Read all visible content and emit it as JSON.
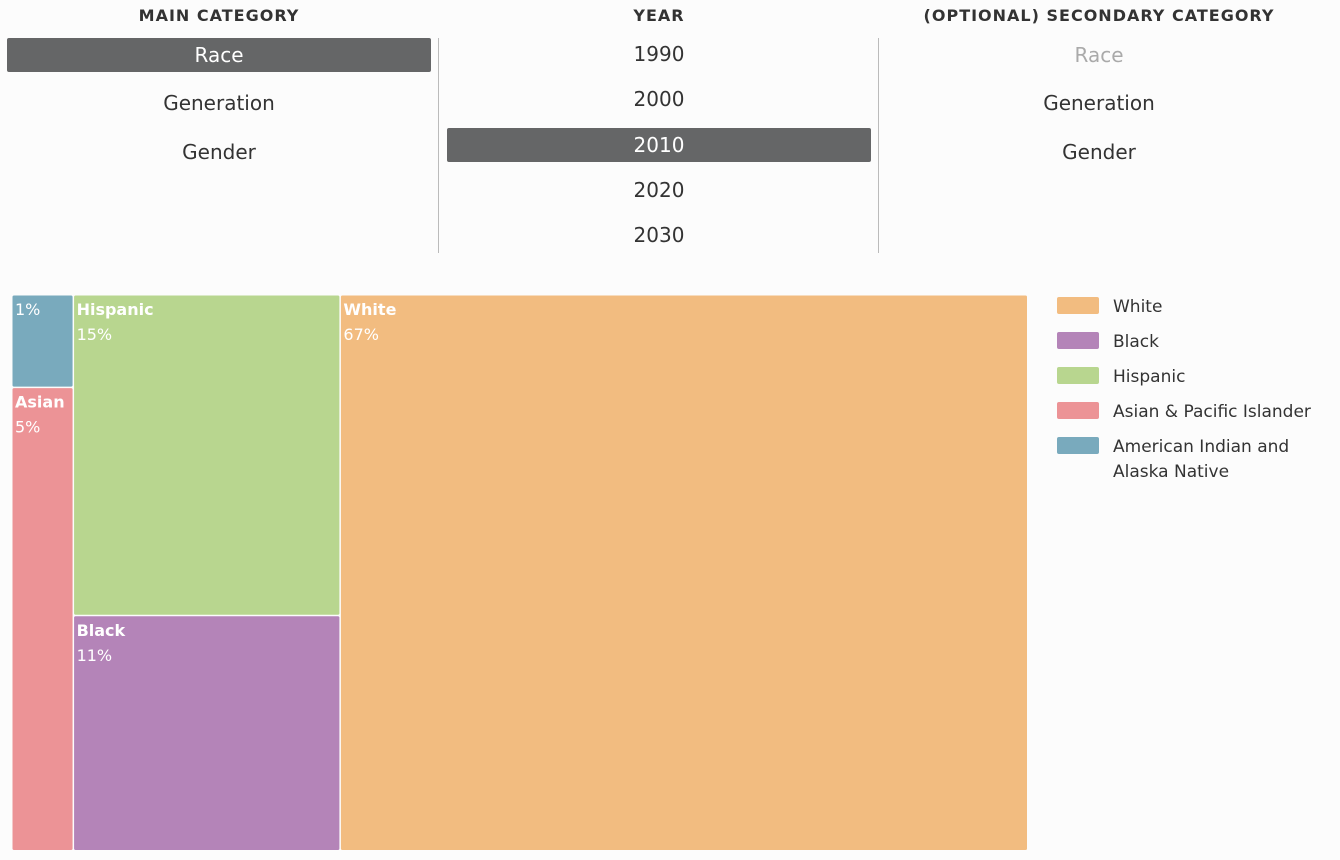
{
  "selectors": {
    "main": {
      "header": "MAIN CATEGORY",
      "options": [
        "Race",
        "Generation",
        "Gender"
      ],
      "selected": "Race"
    },
    "year": {
      "header": "YEAR",
      "options": [
        "1990",
        "2000",
        "2010",
        "2020",
        "2030"
      ],
      "selected": "2010"
    },
    "secondary": {
      "header": "(OPTIONAL) SECONDARY CATEGORY",
      "options": [
        "Race",
        "Generation",
        "Gender"
      ],
      "disabled": "Race"
    }
  },
  "chart_data": {
    "type": "treemap",
    "title": "",
    "nodes": [
      {
        "name": "White",
        "label": "White",
        "value": 67,
        "value_label": "67%",
        "color": "#f2bc80"
      },
      {
        "name": "Hispanic",
        "label": "Hispanic",
        "value": 15,
        "value_label": "15%",
        "color": "#b8d68f"
      },
      {
        "name": "Black",
        "label": "Black",
        "value": 11,
        "value_label": "11%",
        "color": "#b484b8"
      },
      {
        "name": "Asian & Pacific Islander",
        "label": "Asian",
        "value": 5,
        "value_label": "5%",
        "color": "#ec9396"
      },
      {
        "name": "American Indian and Alaska Native",
        "label": "",
        "value": 1,
        "value_label": "1%",
        "color": "#79aabd"
      }
    ],
    "legend": [
      {
        "label": "White",
        "color": "#f2bc80"
      },
      {
        "label": "Black",
        "color": "#b484b8"
      },
      {
        "label": "Hispanic",
        "color": "#b8d68f"
      },
      {
        "label": "Asian & Pacific Islander",
        "color": "#ec9396"
      },
      {
        "label": "American Indian and Alaska Native",
        "color": "#79aabd"
      }
    ],
    "legend_position": "right"
  }
}
